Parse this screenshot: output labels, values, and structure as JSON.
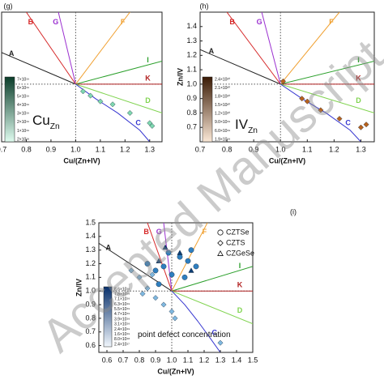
{
  "watermark": "Accepted Manuscript",
  "chart_data": [
    {
      "type": "scatter",
      "panel_label": "(g)",
      "x_label": "Cu/(Zn+IV)",
      "xlim": [
        0.7,
        1.35
      ],
      "ylim": [
        0.6,
        1.5
      ],
      "xticks": [
        {
          "value": 0.7,
          "label": "0.7"
        },
        {
          "value": 0.8,
          "label": "0.8"
        },
        {
          "value": 0.9,
          "label": "0.9"
        },
        {
          "value": 1.0,
          "label": "1.0"
        },
        {
          "value": 1.1,
          "label": "1.1"
        },
        {
          "value": 1.2,
          "label": "1.2"
        },
        {
          "value": 1.3,
          "label": "1.3"
        }
      ],
      "lines": [
        {
          "name": "A",
          "color": "#222222",
          "x": [
            0.7,
            1.0
          ],
          "y": [
            1.22,
            1.0
          ]
        },
        {
          "name": "B",
          "color": "#d62728",
          "x": [
            0.8,
            1.0
          ],
          "y": [
            1.5,
            1.0
          ]
        },
        {
          "name": "G",
          "color": "#9b30d0",
          "x": [
            0.93,
            1.0
          ],
          "y": [
            1.5,
            1.0
          ]
        },
        {
          "name": "F",
          "color": "#f0a030",
          "x": [
            1.22,
            1.0
          ],
          "y": [
            1.5,
            1.0
          ]
        },
        {
          "name": "I",
          "color": "#2ca02c",
          "x": [
            1.35,
            1.0
          ],
          "y": [
            1.16,
            1.0
          ]
        },
        {
          "name": "K",
          "color": "#b22222",
          "x": [
            1.35,
            1.0
          ],
          "y": [
            1.0,
            1.0
          ]
        },
        {
          "name": "D",
          "color": "#7fd34e",
          "x": [
            1.35,
            1.0
          ],
          "y": [
            0.8,
            1.0
          ]
        },
        {
          "name": "C",
          "color": "#3535d0",
          "x": [
            1.3,
            1.26,
            1.17,
            1.08,
            1.0
          ],
          "y": [
            0.6,
            0.68,
            0.8,
            0.9,
            1.0
          ]
        }
      ],
      "series": [
        {
          "color": "#7fd8b0",
          "marker": "diamond",
          "x": [
            1.03,
            1.06,
            1.1,
            1.15,
            1.22,
            1.3,
            1.31
          ],
          "y": [
            0.95,
            0.92,
            0.88,
            0.86,
            0.8,
            0.73,
            0.71
          ]
        }
      ],
      "colorbar": {
        "colors": [
          "#0b3d2a",
          "#dffcef"
        ],
        "labels": [
          "7×10¹⁹",
          "6×10¹⁹",
          "5×10¹⁹",
          "4×10¹⁹",
          "3×10¹⁹",
          "2×10¹⁹",
          "1×10¹⁹",
          "2×10¹⁸"
        ]
      },
      "annotation": {
        "text": "Cu",
        "sub": "Zn"
      }
    },
    {
      "type": "scatter",
      "panel_label": "(h)",
      "x_label": "Cu/(Zn+IV)",
      "y_label": "Zn/IV",
      "xlim": [
        0.7,
        1.35
      ],
      "ylim": [
        0.6,
        1.5
      ],
      "xticks": [
        {
          "value": 0.7,
          "label": "0.7"
        },
        {
          "value": 0.8,
          "label": "0.8"
        },
        {
          "value": 0.9,
          "label": "0.9"
        },
        {
          "value": 1.0,
          "label": "1.0"
        },
        {
          "value": 1.1,
          "label": "1.1"
        },
        {
          "value": 1.2,
          "label": "1.2"
        },
        {
          "value": 1.3,
          "label": "1.3"
        }
      ],
      "yticks": [
        {
          "value": 0.7,
          "label": "0.7"
        },
        {
          "value": 0.8,
          "label": "0.8"
        },
        {
          "value": 0.9,
          "label": "0.9"
        },
        {
          "value": 1.0,
          "label": "1.0"
        },
        {
          "value": 1.1,
          "label": "1.1"
        },
        {
          "value": 1.2,
          "label": "1.2"
        },
        {
          "value": 1.3,
          "label": "1.3"
        },
        {
          "value": 1.4,
          "label": "1.4"
        }
      ],
      "lines": [
        {
          "name": "A",
          "color": "#222222",
          "x": [
            0.7,
            1.0
          ],
          "y": [
            1.24,
            1.0
          ]
        },
        {
          "name": "B",
          "color": "#d62728",
          "x": [
            0.8,
            1.0
          ],
          "y": [
            1.5,
            1.0
          ]
        },
        {
          "name": "G",
          "color": "#9b30d0",
          "x": [
            0.93,
            1.0
          ],
          "y": [
            1.5,
            1.0
          ]
        },
        {
          "name": "F",
          "color": "#f0a030",
          "x": [
            1.22,
            1.0
          ],
          "y": [
            1.5,
            1.0
          ]
        },
        {
          "name": "I",
          "color": "#2ca02c",
          "x": [
            1.35,
            1.0
          ],
          "y": [
            1.16,
            1.0
          ]
        },
        {
          "name": "K",
          "color": "#b22222",
          "x": [
            1.35,
            1.0
          ],
          "y": [
            1.0,
            1.0
          ]
        },
        {
          "name": "D",
          "color": "#7fd34e",
          "x": [
            1.35,
            1.0
          ],
          "y": [
            0.8,
            1.0
          ]
        },
        {
          "name": "C",
          "color": "#3535d0",
          "x": [
            1.3,
            1.26,
            1.17,
            1.08,
            1.0
          ],
          "y": [
            0.6,
            0.68,
            0.8,
            0.9,
            1.0
          ]
        }
      ],
      "series": [
        {
          "color": "#b8621e",
          "marker": "diamond",
          "x": [
            1.01,
            1.08,
            1.1,
            1.15,
            1.22,
            1.3,
            1.32
          ],
          "y": [
            1.02,
            0.9,
            0.88,
            0.82,
            0.76,
            0.7,
            0.72
          ]
        }
      ],
      "colorbar": {
        "colors": [
          "#3a1a05",
          "#fbe8d6"
        ],
        "labels": [
          "2.4×10²⁰",
          "2.1×10²⁰",
          "1.8×10²⁰",
          "1.5×10²⁰",
          "1.2×10²⁰",
          "9.0×10¹⁹",
          "6.0×10¹⁹",
          "1.9×10¹⁹"
        ]
      },
      "annotation": {
        "text": "IV",
        "sub": "Zn"
      }
    },
    {
      "type": "scatter",
      "panel_label": "(i)",
      "x_label": "Cu/(Zn+IV)",
      "y_label": "Zn/IV",
      "xlim": [
        0.55,
        1.5
      ],
      "ylim": [
        0.55,
        1.5
      ],
      "xticks": [
        {
          "value": 0.6,
          "label": "0.6"
        },
        {
          "value": 0.7,
          "label": "0.7"
        },
        {
          "value": 0.8,
          "label": "0.8"
        },
        {
          "value": 0.9,
          "label": "0.9"
        },
        {
          "value": 1.0,
          "label": "1.0"
        },
        {
          "value": 1.1,
          "label": "1.1"
        },
        {
          "value": 1.2,
          "label": "1.2"
        },
        {
          "value": 1.3,
          "label": "1.3"
        },
        {
          "value": 1.4,
          "label": "1.4"
        },
        {
          "value": 1.5,
          "label": "1.5"
        }
      ],
      "yticks": [
        {
          "value": 0.6,
          "label": "0.6"
        },
        {
          "value": 0.7,
          "label": "0.7"
        },
        {
          "value": 0.8,
          "label": "0.8"
        },
        {
          "value": 0.9,
          "label": "0.9"
        },
        {
          "value": 1.0,
          "label": "1.0"
        },
        {
          "value": 1.1,
          "label": "1.1"
        },
        {
          "value": 1.2,
          "label": "1.2"
        },
        {
          "value": 1.3,
          "label": "1.3"
        },
        {
          "value": 1.4,
          "label": "1.4"
        },
        {
          "value": 1.5,
          "label": "1.5"
        }
      ],
      "lines": [
        {
          "name": "A",
          "color": "#222222",
          "x": [
            0.55,
            1.0
          ],
          "y": [
            1.35,
            1.0
          ]
        },
        {
          "name": "B",
          "color": "#d62728",
          "x": [
            0.85,
            1.0
          ],
          "y": [
            1.5,
            1.0
          ]
        },
        {
          "name": "G",
          "color": "#9b30d0",
          "x": [
            0.95,
            1.0
          ],
          "y": [
            1.5,
            1.0
          ]
        },
        {
          "name": "F",
          "color": "#f0a030",
          "x": [
            1.22,
            1.0
          ],
          "y": [
            1.5,
            1.0
          ]
        },
        {
          "name": "I",
          "color": "#2ca02c",
          "x": [
            1.5,
            1.0
          ],
          "y": [
            1.18,
            1.0
          ]
        },
        {
          "name": "K",
          "color": "#b22222",
          "x": [
            1.5,
            1.0
          ],
          "y": [
            1.0,
            1.0
          ]
        },
        {
          "name": "D",
          "color": "#7fd34e",
          "x": [
            1.5,
            1.0
          ],
          "y": [
            0.76,
            1.0
          ]
        },
        {
          "name": "C",
          "color": "#3535d0",
          "x": [
            1.3,
            1.24,
            1.16,
            1.08,
            1.0
          ],
          "y": [
            0.55,
            0.65,
            0.78,
            0.9,
            1.0
          ]
        }
      ],
      "series": [
        {
          "name": "CZTSe",
          "color": "#2f7fc0",
          "marker": "circle",
          "x": [
            0.85,
            0.9,
            0.95,
            1.0,
            1.05,
            1.1,
            1.12,
            0.98,
            0.92,
            1.08,
            1.15
          ],
          "y": [
            1.2,
            1.15,
            1.18,
            1.12,
            1.25,
            1.22,
            1.3,
            1.28,
            1.05,
            1.1,
            1.18
          ]
        },
        {
          "name": "CZTS",
          "color": "#7fb8e0",
          "marker": "diamond",
          "x": [
            0.75,
            0.8,
            0.85,
            0.9,
            0.95,
            1.0,
            0.88,
            0.82,
            1.02,
            1.3
          ],
          "y": [
            1.15,
            1.1,
            1.02,
            0.95,
            0.9,
            0.85,
            1.12,
            0.98,
            0.8,
            0.62
          ]
        },
        {
          "name": "CZGeSe",
          "color": "#0c3e74",
          "marker": "triangle",
          "x": [
            0.92,
            1.05,
            1.12,
            0.96
          ],
          "y": [
            1.22,
            1.28,
            1.15,
            1.32
          ]
        }
      ],
      "colorbar": {
        "colors": [
          "#08306b",
          "#f0f6fc"
        ],
        "labels": [
          "8.6×10¹⁹",
          "7.8×10¹⁹",
          "7.1×10¹⁹",
          "6.3×10¹⁹",
          "5.5×10¹⁹",
          "4.7×10¹⁹",
          "3.9×10¹⁹",
          "3.1×10¹⁹",
          "2.4×10¹⁹",
          "1.6×10¹⁹",
          "8.0×10¹⁸",
          "2.4×10¹⁷"
        ]
      },
      "annotation": {
        "text": "point defect concentration"
      }
    }
  ]
}
